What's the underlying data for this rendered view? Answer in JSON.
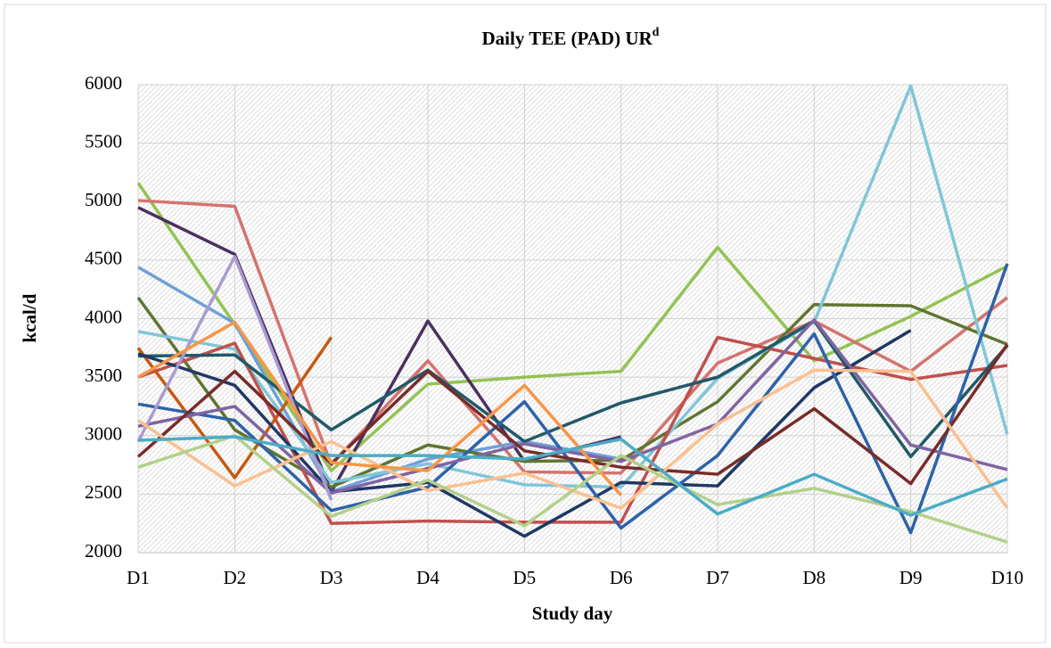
{
  "chart_data": {
    "type": "line",
    "title": "Daily TEE (PAD) UR",
    "title_superscript": "d",
    "x_label": "Study day",
    "y_label": "kcal/d",
    "categories": [
      "D1",
      "D2",
      "D3",
      "D4",
      "D5",
      "D6",
      "D7",
      "D8",
      "D9",
      "D10"
    ],
    "ylim": [
      2000,
      6000
    ],
    "yticks": [
      2000,
      2500,
      3000,
      3500,
      4000,
      4500,
      5000,
      5500,
      6000
    ],
    "grid": true,
    "series": [
      {
        "color": "#92c353",
        "values": [
          5160,
          3950,
          2700,
          3440,
          3500,
          3550,
          4610,
          3640,
          4020,
          4450
        ]
      },
      {
        "color": "#d4736f",
        "values": [
          5010,
          4960,
          2750,
          3640,
          2690,
          2680,
          3620,
          3980,
          3550,
          4180
        ]
      },
      {
        "color": "#4b3060",
        "values": [
          4950,
          4550,
          2520,
          3980,
          2780,
          2990,
          null,
          null,
          null,
          null
        ]
      },
      {
        "color": "#6f9fd8",
        "values": [
          4440,
          3960,
          2520,
          2800,
          2950,
          2800,
          null,
          null,
          null,
          null
        ]
      },
      {
        "color": "#5f7530",
        "values": [
          4180,
          3050,
          2560,
          2920,
          2780,
          2790,
          3290,
          4120,
          4110,
          3780
        ]
      },
      {
        "color": "#7fc6d8",
        "values": [
          3890,
          3740,
          2600,
          2760,
          2580,
          2560,
          3490,
          3970,
          5990,
          3010
        ]
      },
      {
        "color": "#c0504d",
        "values": [
          3500,
          3790,
          2250,
          2270,
          2260,
          2260,
          3840,
          3660,
          3480,
          3600
        ]
      },
      {
        "color": "#c55a11",
        "values": [
          3750,
          2640,
          3840,
          null,
          null,
          null,
          null,
          null,
          null,
          null
        ]
      },
      {
        "color": "#215968",
        "values": [
          3680,
          3690,
          3050,
          3560,
          2950,
          3280,
          3500,
          3980,
          2820,
          3770
        ]
      },
      {
        "color": "#1f3864",
        "values": [
          3700,
          3430,
          2520,
          2600,
          2140,
          2600,
          2570,
          3410,
          3900,
          null
        ]
      },
      {
        "color": "#2e62a8",
        "values": [
          3270,
          3130,
          2360,
          2560,
          3290,
          2210,
          2830,
          3870,
          2170,
          4470
        ]
      },
      {
        "color": "#8064a2",
        "values": [
          3080,
          3250,
          2510,
          2720,
          2930,
          2780,
          3100,
          3990,
          2920,
          2710
        ]
      },
      {
        "color": "#a99bd0",
        "values": [
          2950,
          4530,
          2450,
          null,
          null,
          null,
          null,
          null,
          null,
          null
        ]
      },
      {
        "color": "#772c2a",
        "values": [
          2820,
          3550,
          2760,
          3550,
          2870,
          2730,
          2670,
          3230,
          2590,
          3780
        ]
      },
      {
        "color": "#fac090",
        "values": [
          3130,
          2570,
          2950,
          2530,
          2680,
          2380,
          3100,
          3560,
          3550,
          2380
        ]
      },
      {
        "color": "#f79646",
        "values": [
          3500,
          3970,
          2770,
          2700,
          3430,
          2490,
          null,
          null,
          null,
          null
        ]
      },
      {
        "color": "#b3d08a",
        "values": [
          2730,
          3000,
          2310,
          2620,
          2230,
          2830,
          2410,
          2550,
          2350,
          2090
        ]
      },
      {
        "color": "#4bacc6",
        "values": [
          2960,
          2990,
          2830,
          2830,
          2800,
          2970,
          2330,
          2670,
          2320,
          2630
        ]
      }
    ]
  }
}
